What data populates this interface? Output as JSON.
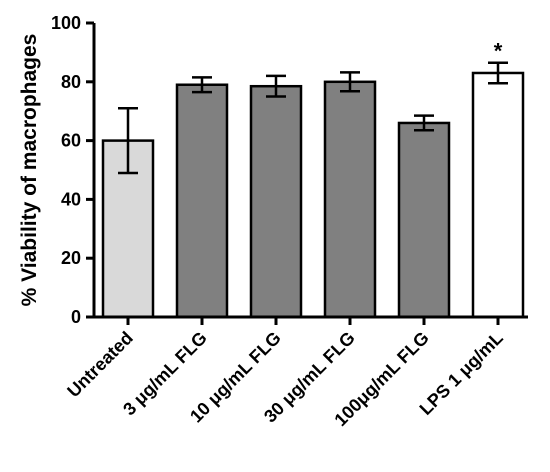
{
  "chart_data": {
    "type": "bar",
    "ylabel": "% Viability of macrophages",
    "xlabel": "",
    "ylim": [
      0,
      100
    ],
    "yticks": [
      0,
      20,
      40,
      60,
      80,
      100
    ],
    "grid": false,
    "categories": [
      "Untreated",
      "3 μg/mL FLG",
      "10 μg/mL FLG",
      "30 μg/mL FLG",
      "100μg/mL FLG",
      "LPS 1 μg/mL"
    ],
    "values": [
      60,
      79,
      78.5,
      80,
      66,
      83
    ],
    "errors": [
      11,
      2.5,
      3.5,
      3.2,
      2.5,
      3.5
    ],
    "bar_colors": [
      "#d9d9d9",
      "#808080",
      "#808080",
      "#808080",
      "#808080",
      "#ffffff"
    ],
    "annotations": [
      {
        "category": "LPS 1 μg/mL",
        "text": "*"
      }
    ]
  }
}
